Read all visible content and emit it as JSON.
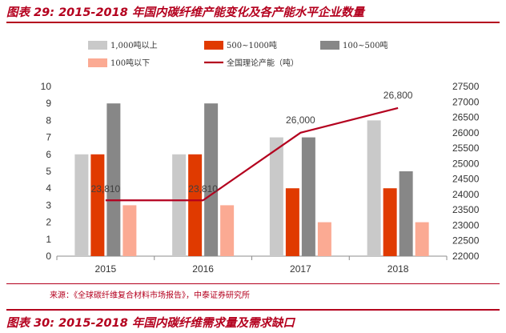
{
  "header": {
    "title": "图表 29:  2015-2018 年国内碳纤维产能变化及各产能水平企业数量"
  },
  "footer": {
    "source": "来源：《全球碳纤维复合材料市场报告》，中泰证券研究所",
    "next_title": "图表 30:  2015-2018 年国内碳纤维需求量及需求缺口"
  },
  "colors": {
    "brand": "#b4001e",
    "s1": "#c9c9c9",
    "s2": "#e03a00",
    "s3": "#878787",
    "s4": "#fbaa93",
    "line": "#b4001e"
  },
  "chart_data": {
    "type": "bar",
    "categories": [
      "2015",
      "2016",
      "2017",
      "2018"
    ],
    "series": [
      {
        "name": "1,000吨以上",
        "values": [
          6,
          6,
          7,
          8
        ],
        "axis": "left"
      },
      {
        "name": "500~1000吨",
        "values": [
          6,
          6,
          4,
          4
        ],
        "axis": "left"
      },
      {
        "name": "100~500吨",
        "values": [
          9,
          9,
          7,
          5
        ],
        "axis": "left"
      },
      {
        "name": "100吨以下",
        "values": [
          3,
          3,
          2,
          2
        ],
        "axis": "left"
      }
    ],
    "line_series": {
      "name": "全国理论产能（吨）",
      "values": [
        23810,
        23810,
        26000,
        26800
      ],
      "axis": "right",
      "labels": [
        "23,810",
        "23,810",
        "26,000",
        "26,800"
      ]
    },
    "y_left": {
      "min": 0,
      "max": 10,
      "ticks": [
        "0",
        "1",
        "2",
        "3",
        "4",
        "5",
        "6",
        "7",
        "8",
        "9",
        "10"
      ]
    },
    "y_right": {
      "min": 22000,
      "max": 27500,
      "ticks": [
        "22000",
        "22500",
        "23000",
        "23500",
        "24000",
        "24500",
        "25000",
        "25500",
        "26000",
        "26500",
        "27000",
        "27500"
      ]
    },
    "grid": false,
    "legend": "top"
  }
}
